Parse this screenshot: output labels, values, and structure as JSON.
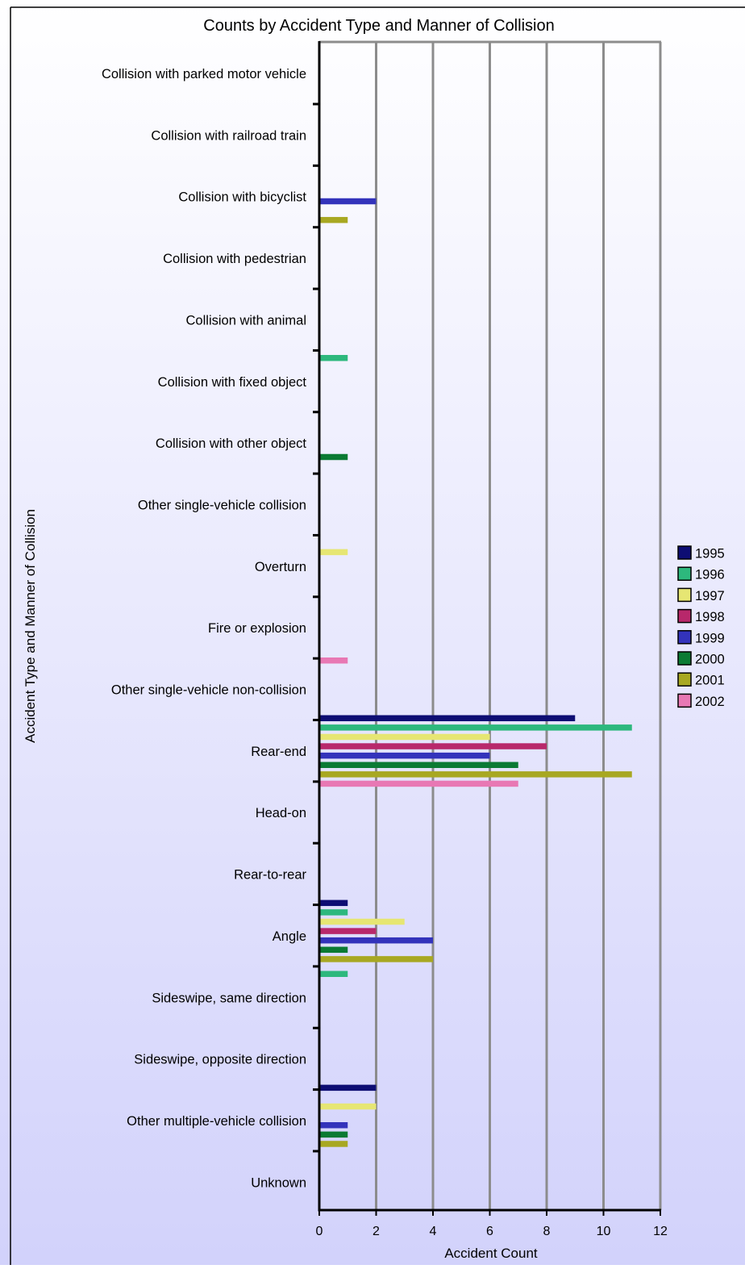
{
  "chart_data": {
    "type": "bar",
    "orientation": "horizontal",
    "title": "Counts by Accident Type and Manner of Collision",
    "xlabel": "Accident Count",
    "ylabel": "Accident Type and Manner of Collision",
    "xlim": [
      0,
      12
    ],
    "x_ticks": [
      0,
      2,
      4,
      6,
      8,
      10,
      12
    ],
    "grid": true,
    "legend_position": "right",
    "categories": [
      "Collision with parked motor vehicle",
      "Collision with railroad train",
      "Collision with bicyclist",
      "Collision with pedestrian",
      "Collision with animal",
      "Collision with fixed object",
      "Collision with other object",
      "Other single-vehicle collision",
      "Overturn",
      "Fire or explosion",
      "Other single-vehicle non-collision",
      "Rear-end",
      "Head-on",
      "Rear-to-rear",
      "Angle",
      "Sideswipe, same direction",
      "Sideswipe, opposite direction",
      "Other multiple-vehicle collision",
      "Unknown"
    ],
    "series": [
      {
        "name": "1995",
        "color": "#0d0d73",
        "values": [
          0,
          0,
          0,
          0,
          0,
          0,
          0,
          0,
          0,
          0,
          0,
          9,
          0,
          0,
          1,
          0,
          0,
          2,
          0
        ]
      },
      {
        "name": "1996",
        "color": "#2db87d",
        "values": [
          0,
          0,
          0,
          0,
          0,
          1,
          0,
          0,
          0,
          0,
          0,
          11,
          0,
          0,
          1,
          1,
          0,
          0,
          0
        ]
      },
      {
        "name": "1997",
        "color": "#e6e673",
        "values": [
          0,
          0,
          0,
          0,
          0,
          0,
          0,
          0,
          1,
          0,
          0,
          6,
          0,
          0,
          3,
          0,
          0,
          2,
          0
        ]
      },
      {
        "name": "1998",
        "color": "#b8286b",
        "values": [
          0,
          0,
          0,
          0,
          0,
          0,
          0,
          0,
          0,
          0,
          0,
          8,
          0,
          0,
          2,
          0,
          0,
          0,
          0
        ]
      },
      {
        "name": "1999",
        "color": "#3333bb",
        "values": [
          0,
          0,
          2,
          0,
          0,
          0,
          0,
          0,
          0,
          0,
          0,
          6,
          0,
          0,
          4,
          0,
          0,
          1,
          0
        ]
      },
      {
        "name": "2000",
        "color": "#0b7a33",
        "values": [
          0,
          0,
          0,
          0,
          0,
          0,
          1,
          0,
          0,
          0,
          0,
          7,
          0,
          0,
          1,
          0,
          0,
          1,
          0
        ]
      },
      {
        "name": "2001",
        "color": "#a8a822",
        "values": [
          0,
          0,
          1,
          0,
          0,
          0,
          0,
          0,
          0,
          0,
          0,
          11,
          0,
          0,
          4,
          0,
          0,
          1,
          0
        ]
      },
      {
        "name": "2002",
        "color": "#e878b4",
        "values": [
          0,
          0,
          0,
          0,
          0,
          0,
          0,
          0,
          0,
          1,
          0,
          7,
          0,
          0,
          0,
          0,
          0,
          0,
          0
        ]
      }
    ]
  }
}
